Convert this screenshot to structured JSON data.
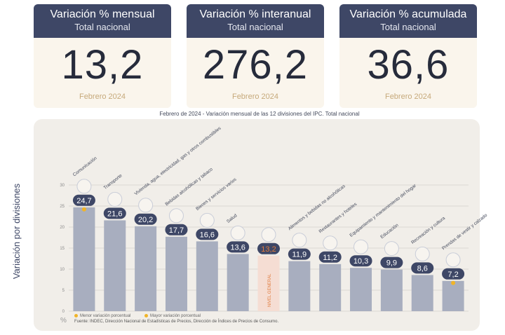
{
  "cards": [
    {
      "title": "Variación % mensual",
      "subtitle": "Total nacional",
      "value": "13,2",
      "period": "Febrero 2024"
    },
    {
      "title": "Variación % interanual",
      "subtitle": "Total nacional",
      "value": "276,2",
      "period": "Febrero 2024"
    },
    {
      "title": "Variación % acumulada",
      "subtitle": "Total nacional",
      "value": "36,6",
      "period": "Febrero 2024"
    }
  ],
  "chart_title": "Febrero de 2024 - Variación mensual de las 12 divisiones del IPC. Total nacional",
  "pct_sign": "%",
  "legend": {
    "min_label": "Menor variación porcentual",
    "max_label": "Mayor variación porcentual"
  },
  "footer": "Fuente: INDEC, Dirección Nacional de Estadísticas de Precios, Dirección de Índices de Precios de Consumo.",
  "colors": {
    "bar": "#a8aebf",
    "general_bar": "#f5ddd3",
    "badge": "#3e4766",
    "general_badge_text": "#e07a3c",
    "marker": "#f0b429",
    "card_header": "#3e4766"
  },
  "chart_data": {
    "type": "bar",
    "ylabel": "Variación por divisiones",
    "ylim": [
      0,
      30
    ],
    "yticks": [
      0,
      5,
      10,
      15,
      20,
      25,
      30
    ],
    "grid": true,
    "categories": [
      "Comunicación",
      "Transporte",
      "Vivienda, agua, electricidad, gas y otros combustibles",
      "Bebidas alcohólicas y tabaco",
      "Bienes y servicios varios",
      "Salud",
      "NIVEL GENERAL",
      "Alimentos y bebidas no alcohólicas",
      "Restaurantes y hoteles",
      "Equipamiento y mantenimiento del hogar",
      "Educación",
      "Recreación y cultura",
      "Prendas de vestir y calzado"
    ],
    "values": [
      24.7,
      21.6,
      20.2,
      17.7,
      16.6,
      13.6,
      13.2,
      11.9,
      11.2,
      10.3,
      9.9,
      8.6,
      7.2
    ],
    "value_labels": [
      "24,7",
      "21,6",
      "20,2",
      "17,7",
      "16,6",
      "13,6",
      "13,2",
      "11,9",
      "11,2",
      "10,3",
      "9,9",
      "8,6",
      "7,2"
    ],
    "highlight_index": 6,
    "max_index": 0,
    "min_index": 12,
    "icons": [
      "phone-icon",
      "car-icon",
      "lightbulb-icon",
      "bottles-icon",
      "scissors-icon",
      "health-cross-icon",
      "shopping-basket-icon",
      "food-bowl-icon",
      "cutlery-icon",
      "toolbox-icon",
      "book-icon",
      "umbrella-icon",
      "clothing-icon"
    ]
  }
}
